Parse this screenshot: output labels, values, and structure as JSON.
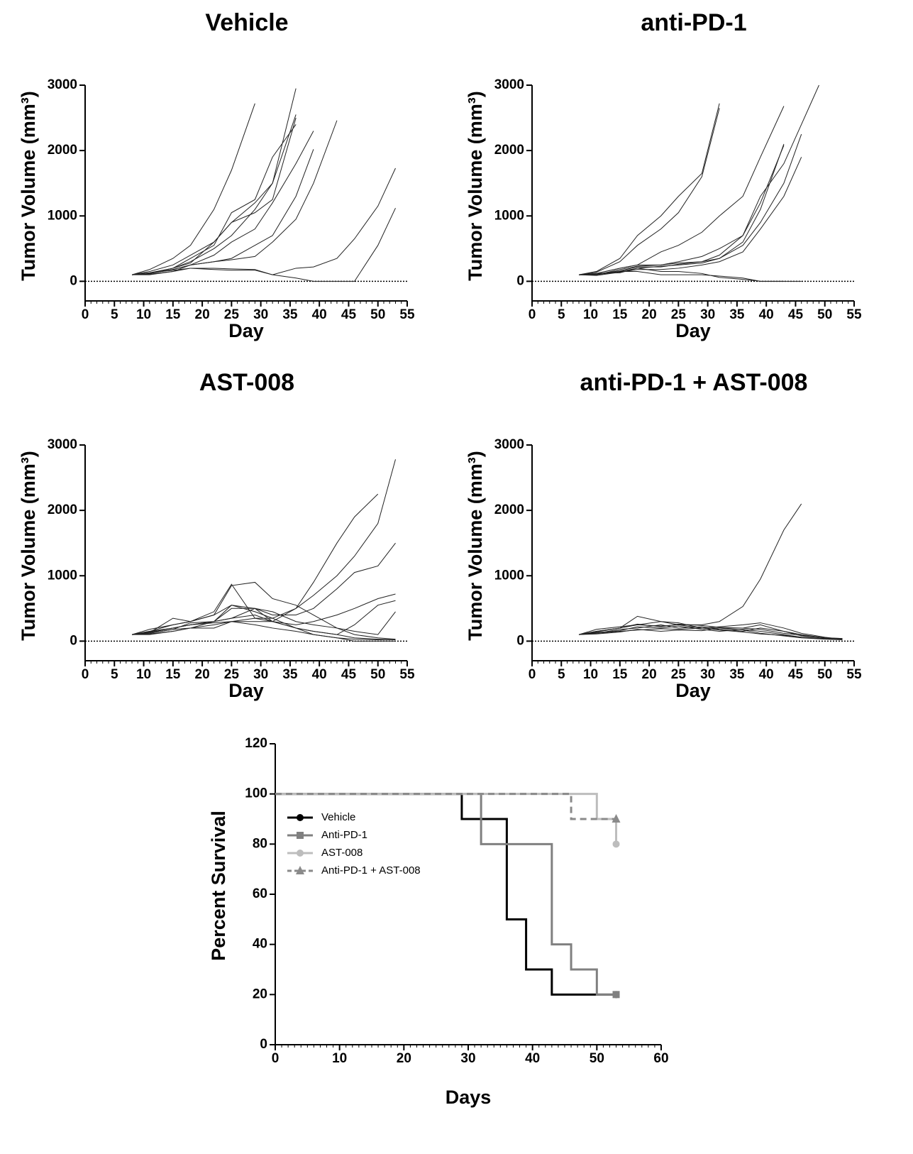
{
  "chart_data": [
    {
      "type": "line",
      "title": "Vehicle",
      "xlabel": "Day",
      "ylabel": "Tumor Volume (mm³)",
      "color": "#222222",
      "xlim": [
        0,
        55
      ],
      "xticks": [
        0,
        5,
        10,
        15,
        20,
        25,
        30,
        35,
        40,
        45,
        50,
        55
      ],
      "ylim": [
        -300,
        3000
      ],
      "yticks": [
        0,
        1000,
        2000,
        3000
      ],
      "reference_line": 0,
      "x": [
        8,
        11,
        15,
        18,
        22,
        25,
        29,
        32,
        36,
        39,
        43,
        46,
        50,
        53
      ],
      "series": [
        {
          "values": [
            100,
            180,
            350,
            550,
            1100,
            1700,
            2720,
            null,
            null,
            null,
            null,
            null,
            null,
            null
          ]
        },
        {
          "values": [
            100,
            150,
            250,
            400,
            600,
            900,
            1200,
            1500,
            2950,
            null,
            null,
            null,
            null,
            null
          ]
        },
        {
          "values": [
            100,
            120,
            200,
            300,
            500,
            700,
            1100,
            1500,
            2550,
            null,
            null,
            null,
            null,
            null
          ]
        },
        {
          "values": [
            100,
            130,
            200,
            350,
            550,
            1050,
            1250,
            1900,
            2400,
            null,
            null,
            null,
            null,
            null
          ]
        },
        {
          "values": [
            100,
            120,
            180,
            250,
            400,
            600,
            800,
            1200,
            1800,
            2300,
            null,
            null,
            null,
            null
          ]
        },
        {
          "values": [
            100,
            110,
            150,
            250,
            300,
            350,
            550,
            700,
            1300,
            2020,
            null,
            null,
            null,
            null
          ]
        },
        {
          "values": [
            100,
            120,
            180,
            250,
            300,
            330,
            380,
            600,
            950,
            1500,
            2460,
            null,
            null,
            null
          ]
        },
        {
          "values": [
            100,
            130,
            170,
            200,
            180,
            170,
            170,
            100,
            200,
            220,
            350,
            650,
            1150,
            1730
          ]
        },
        {
          "values": [
            100,
            100,
            150,
            200,
            200,
            190,
            180,
            100,
            50,
            0,
            0,
            0,
            550,
            1120
          ]
        },
        {
          "values": [
            100,
            120,
            200,
            280,
            600,
            900,
            1050,
            1250,
            2500,
            null,
            null,
            null,
            null,
            null
          ]
        }
      ]
    },
    {
      "type": "line",
      "title": "anti-PD-1",
      "xlabel": "Day",
      "ylabel": "Tumor Volume (mm³)",
      "color": "#222222",
      "xlim": [
        0,
        55
      ],
      "xticks": [
        0,
        5,
        10,
        15,
        20,
        25,
        30,
        35,
        40,
        45,
        50,
        55
      ],
      "ylim": [
        -300,
        3000
      ],
      "yticks": [
        0,
        1000,
        2000,
        3000
      ],
      "reference_line": 0,
      "x": [
        8,
        11,
        15,
        18,
        22,
        25,
        29,
        32,
        36,
        39,
        43,
        46,
        49,
        53
      ],
      "series": [
        {
          "values": [
            100,
            150,
            350,
            700,
            1000,
            1300,
            1650,
            2720,
            null,
            null,
            null,
            null,
            null,
            null
          ]
        },
        {
          "values": [
            100,
            140,
            300,
            550,
            800,
            1050,
            1600,
            2650,
            null,
            null,
            null,
            null,
            null,
            null
          ]
        },
        {
          "values": [
            100,
            120,
            200,
            250,
            450,
            550,
            750,
            1000,
            1300,
            1900,
            2680,
            null,
            null,
            null
          ]
        },
        {
          "values": [
            100,
            110,
            150,
            200,
            230,
            250,
            280,
            350,
            600,
            1100,
            2100,
            null,
            null,
            null
          ]
        },
        {
          "values": [
            100,
            100,
            180,
            230,
            250,
            280,
            300,
            400,
            700,
            1200,
            2080,
            null,
            null,
            null
          ]
        },
        {
          "values": [
            100,
            110,
            160,
            220,
            220,
            260,
            300,
            350,
            550,
            900,
            1500,
            2250,
            null,
            null
          ]
        },
        {
          "values": [
            100,
            120,
            200,
            250,
            250,
            300,
            380,
            500,
            700,
            1300,
            1800,
            2400,
            3000,
            null
          ]
        },
        {
          "values": [
            100,
            100,
            150,
            150,
            100,
            100,
            100,
            80,
            50,
            0,
            0,
            0,
            null,
            null
          ]
        },
        {
          "values": [
            100,
            120,
            130,
            200,
            150,
            150,
            120,
            60,
            30,
            0,
            0,
            null,
            null,
            null
          ]
        },
        {
          "values": [
            100,
            90,
            140,
            180,
            180,
            200,
            250,
            300,
            450,
            800,
            1300,
            1900,
            null,
            null
          ]
        }
      ]
    },
    {
      "type": "line",
      "title": "AST-008",
      "xlabel": "Day",
      "ylabel": "Tumor Volume (mm³)",
      "color": "#222222",
      "xlim": [
        0,
        55
      ],
      "xticks": [
        0,
        5,
        10,
        15,
        20,
        25,
        30,
        35,
        40,
        45,
        50,
        55
      ],
      "ylim": [
        -300,
        3000
      ],
      "yticks": [
        0,
        1000,
        2000,
        3000
      ],
      "reference_line": 0,
      "x": [
        8,
        11,
        15,
        18,
        22,
        25,
        29,
        32,
        36,
        39,
        43,
        46,
        50,
        53
      ],
      "series": [
        {
          "values": [
            100,
            150,
            250,
            300,
            400,
            850,
            900,
            650,
            550,
            400,
            200,
            100,
            50,
            30
          ]
        },
        {
          "values": [
            100,
            130,
            350,
            300,
            450,
            870,
            350,
            300,
            500,
            900,
            1500,
            1900,
            2250,
            null
          ]
        },
        {
          "values": [
            100,
            180,
            250,
            300,
            400,
            550,
            450,
            350,
            500,
            700,
            1000,
            1300,
            1800,
            2780
          ]
        },
        {
          "values": [
            100,
            150,
            200,
            250,
            300,
            500,
            500,
            400,
            400,
            500,
            800,
            1050,
            1150,
            1500
          ]
        },
        {
          "values": [
            100,
            120,
            180,
            200,
            250,
            300,
            300,
            300,
            250,
            300,
            400,
            500,
            650,
            720
          ]
        },
        {
          "values": [
            100,
            130,
            200,
            250,
            300,
            350,
            500,
            450,
            300,
            250,
            200,
            150,
            100,
            450
          ]
        },
        {
          "values": [
            100,
            110,
            150,
            200,
            300,
            350,
            400,
            300,
            200,
            150,
            100,
            50,
            30,
            20
          ]
        },
        {
          "values": [
            100,
            140,
            200,
            250,
            280,
            300,
            250,
            200,
            150,
            100,
            50,
            30,
            20,
            20
          ]
        },
        {
          "values": [
            100,
            120,
            180,
            280,
            300,
            550,
            500,
            300,
            200,
            150,
            100,
            250,
            550,
            620
          ]
        },
        {
          "values": [
            100,
            100,
            150,
            200,
            200,
            300,
            350,
            350,
            200,
            100,
            50,
            0,
            0,
            0
          ]
        }
      ]
    },
    {
      "type": "line",
      "title": "anti-PD-1 + AST-008",
      "xlabel": "Day",
      "ylabel": "Tumor Volume (mm³)",
      "color": "#222222",
      "xlim": [
        0,
        55
      ],
      "xticks": [
        0,
        5,
        10,
        15,
        20,
        25,
        30,
        35,
        40,
        45,
        50,
        55
      ],
      "ylim": [
        -300,
        3000
      ],
      "yticks": [
        0,
        1000,
        2000,
        3000
      ],
      "reference_line": 0,
      "x": [
        8,
        11,
        15,
        18,
        22,
        25,
        29,
        32,
        36,
        39,
        43,
        46,
        50,
        53
      ],
      "series": [
        {
          "values": [
            100,
            150,
            200,
            380,
            300,
            250,
            250,
            300,
            530,
            950,
            1700,
            2100,
            null,
            null
          ]
        },
        {
          "values": [
            100,
            150,
            200,
            250,
            230,
            250,
            200,
            200,
            200,
            250,
            150,
            100,
            50,
            30
          ]
        },
        {
          "values": [
            100,
            120,
            180,
            200,
            250,
            200,
            220,
            180,
            150,
            200,
            150,
            80,
            50,
            40
          ]
        },
        {
          "values": [
            100,
            180,
            220,
            250,
            300,
            280,
            200,
            220,
            250,
            280,
            200,
            120,
            60,
            30
          ]
        },
        {
          "values": [
            100,
            130,
            160,
            220,
            200,
            230,
            180,
            150,
            180,
            150,
            100,
            60,
            40,
            30
          ]
        },
        {
          "values": [
            100,
            110,
            140,
            180,
            150,
            170,
            160,
            200,
            170,
            120,
            80,
            50,
            30,
            20
          ]
        },
        {
          "values": [
            100,
            140,
            200,
            260,
            220,
            260,
            240,
            210,
            200,
            180,
            120,
            90,
            50,
            40
          ]
        },
        {
          "values": [
            100,
            120,
            150,
            170,
            190,
            180,
            200,
            170,
            140,
            110,
            90,
            60,
            40,
            30
          ]
        }
      ]
    },
    {
      "type": "step",
      "xlabel": "Days",
      "ylabel": "Percent Survival",
      "xlim": [
        0,
        60
      ],
      "xticks": [
        0,
        10,
        20,
        30,
        40,
        50,
        60
      ],
      "ylim": [
        0,
        120
      ],
      "yticks": [
        0,
        20,
        40,
        60,
        80,
        100,
        120
      ],
      "legend": "upper-left",
      "series": [
        {
          "name": "Vehicle",
          "color": "#000000",
          "marker": "circle",
          "dash": false,
          "x": [
            0,
            29,
            36,
            39,
            43,
            53
          ],
          "values": [
            100,
            90,
            50,
            30,
            20,
            20
          ]
        },
        {
          "name": "Anti-PD-1",
          "color": "#808080",
          "marker": "square",
          "dash": false,
          "x": [
            0,
            32,
            43,
            46,
            50,
            53
          ],
          "values": [
            100,
            80,
            40,
            30,
            20,
            20
          ]
        },
        {
          "name": "AST-008",
          "color": "#bdbdbd",
          "marker": "circle",
          "dash": false,
          "x": [
            0,
            50,
            53
          ],
          "values": [
            100,
            90,
            80
          ]
        },
        {
          "name": "Anti-PD-1 + AST-008",
          "color": "#8a8a8a",
          "marker": "star",
          "dash": true,
          "x": [
            0,
            46,
            53
          ],
          "values": [
            100,
            90,
            90
          ]
        }
      ]
    }
  ]
}
